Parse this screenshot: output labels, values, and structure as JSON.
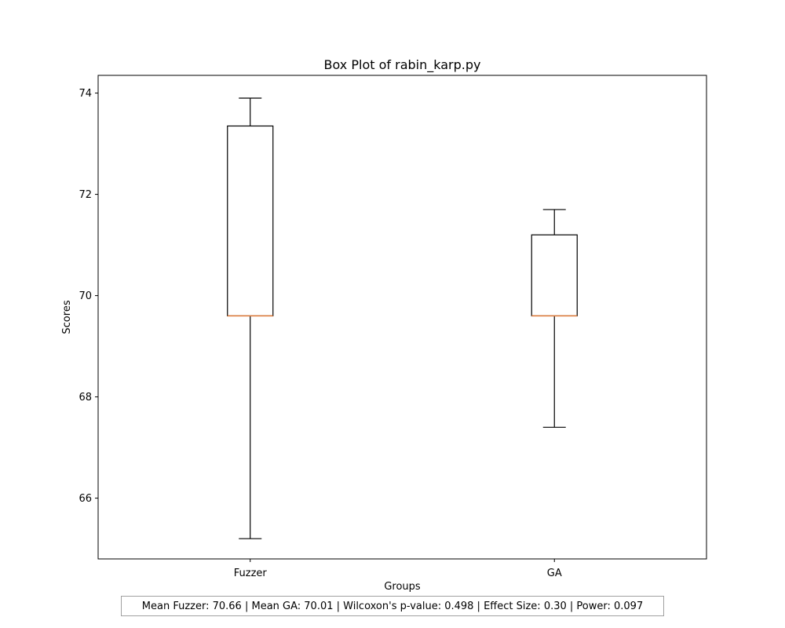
{
  "chart_data": {
    "type": "box",
    "title": "Box Plot of rabin_karp.py",
    "xlabel": "Groups",
    "ylabel": "Scores",
    "ylim": [
      64.8,
      74.35
    ],
    "yticks": [
      "66",
      "68",
      "70",
      "72",
      "74"
    ],
    "grid": false,
    "categories": [
      "Fuzzer",
      "GA"
    ],
    "series": [
      {
        "name": "Fuzzer",
        "whisker_low": 65.2,
        "q1": 69.6,
        "median": 69.6,
        "q3": 73.35,
        "whisker_high": 73.9
      },
      {
        "name": "GA",
        "whisker_low": 67.4,
        "q1": 69.6,
        "median": 69.6,
        "q3": 71.2,
        "whisker_high": 71.7
      }
    ],
    "annotation": "Mean Fuzzer: 70.66 | Mean GA: 70.01 | Wilcoxon's p-value: 0.498 | Effect Size: 0.30 | Power: 0.097"
  },
  "colors": {
    "median": "#e07b39",
    "box": "#000000"
  }
}
